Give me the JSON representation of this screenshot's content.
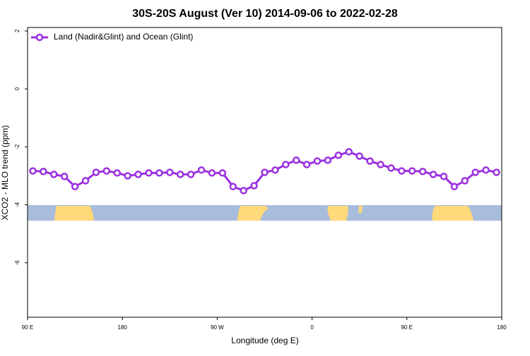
{
  "chart_data": {
    "type": "line",
    "title": "30S-20S August (Ver 10)   2014-09-06 to 2022-02-28",
    "xlabel": "Longitude (deg E)",
    "ylabel": "XCO2 - MLO trend (ppm)",
    "x": [
      95,
      105,
      115,
      125,
      135,
      145,
      155,
      165,
      175,
      185,
      195,
      205,
      215,
      225,
      235,
      245,
      255,
      265,
      275,
      285,
      295,
      305,
      315,
      325,
      335,
      345,
      355,
      365,
      375,
      385,
      395,
      405,
      415,
      425,
      435,
      445,
      455,
      465,
      475,
      485,
      495,
      505,
      515,
      525,
      535
    ],
    "series": [
      {
        "name": "Land (Nadir&Glint) and Ocean (Glint)",
        "color": "#9b30e0",
        "values": [
          -2.83,
          -2.85,
          -2.95,
          -3.02,
          -3.37,
          -3.17,
          -2.88,
          -2.83,
          -2.9,
          -3.0,
          -2.95,
          -2.9,
          -2.9,
          -2.88,
          -2.95,
          -2.95,
          -2.8,
          -2.9,
          -2.9,
          -3.37,
          -3.51,
          -3.34,
          -2.88,
          -2.8,
          -2.61,
          -2.46,
          -2.61,
          -2.49,
          -2.46,
          -2.29,
          -2.17,
          -2.32,
          -2.49,
          -2.61,
          -2.73,
          -2.83,
          -2.83,
          -2.85,
          -2.95,
          -3.02,
          -3.37,
          -3.17,
          -2.88,
          -2.8,
          -2.88
        ]
      }
    ],
    "xlim": [
      90,
      540
    ],
    "xticks": [
      {
        "value": 90,
        "label": "90 E"
      },
      {
        "value": 180,
        "label": "180"
      },
      {
        "value": 270,
        "label": "90 W"
      },
      {
        "value": 360,
        "label": "0"
      },
      {
        "value": 450,
        "label": "90 E"
      },
      {
        "value": 540,
        "label": "180"
      }
    ],
    "ylim": [
      -7.88,
      2.12
    ],
    "yticks": [
      2,
      0,
      -2,
      -4,
      -6
    ],
    "legend": "top-left"
  }
}
